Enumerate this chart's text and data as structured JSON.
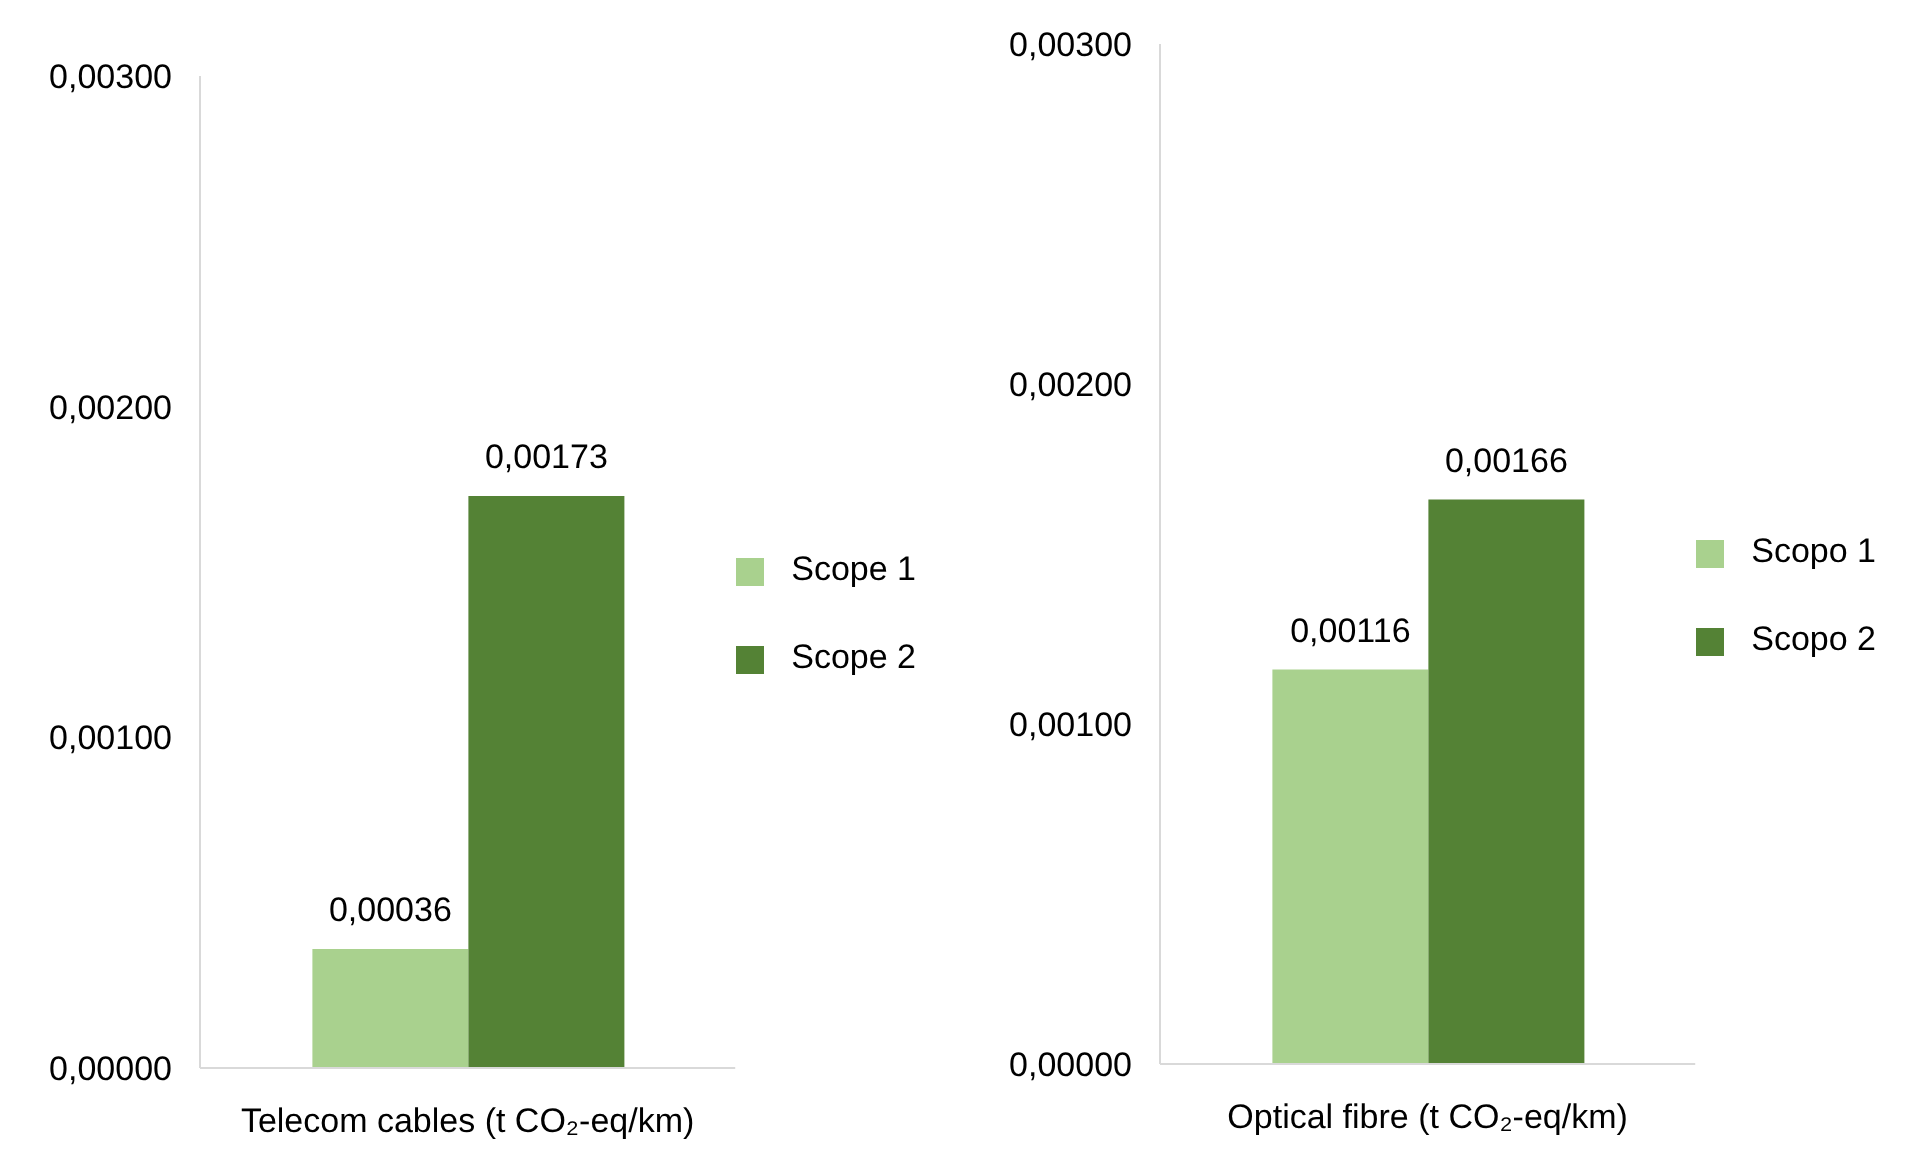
{
  "chart_data": [
    {
      "type": "bar",
      "categories": [
        "Telecom cables (t CO₂-eq/km)"
      ],
      "series": [
        {
          "name": "Scope 1",
          "color": "#a9d18e",
          "values": [
            0.00036
          ],
          "value_labels": [
            "0,00036"
          ]
        },
        {
          "name": "Scope 2",
          "color": "#548235",
          "values": [
            0.00173
          ],
          "value_labels": [
            "0,00173"
          ]
        }
      ],
      "ylim": [
        0,
        0.003
      ],
      "yticks": [
        {
          "value": 0,
          "label": "0,00000"
        },
        {
          "value": 0.001,
          "label": "0,00100"
        },
        {
          "value": 0.002,
          "label": "0,00200"
        },
        {
          "value": 0.003,
          "label": "0,00300"
        }
      ],
      "grid": false,
      "legend": "right"
    },
    {
      "type": "bar",
      "categories": [
        "Optical fibre (t CO₂-eq/km)"
      ],
      "series": [
        {
          "name": "Scopo 1",
          "color": "#a9d18e",
          "values": [
            0.00116
          ],
          "value_labels": [
            "0,00116"
          ]
        },
        {
          "name": "Scopo 2",
          "color": "#548235",
          "values": [
            0.00166
          ],
          "value_labels": [
            "0,00166"
          ]
        }
      ],
      "ylim": [
        0,
        0.003
      ],
      "yticks": [
        {
          "value": 0,
          "label": "0,00000"
        },
        {
          "value": 0.001,
          "label": "0,00100"
        },
        {
          "value": 0.002,
          "label": "0,00200"
        },
        {
          "value": 0.003,
          "label": "0,00300"
        }
      ],
      "grid": false,
      "legend": "right"
    }
  ]
}
